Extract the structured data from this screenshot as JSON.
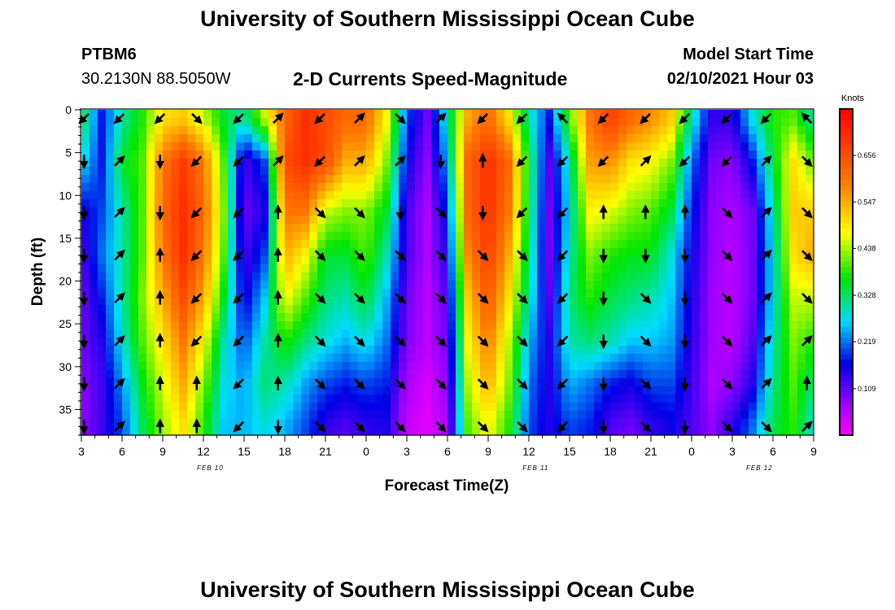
{
  "header": {
    "title_top": "University of Southern Mississippi Ocean Cube",
    "title_bottom": "University of Southern Mississippi Ocean Cube",
    "station": "PTBM6",
    "coords": "30.2130N 88.5050W",
    "subtitle": "2-D Currents Speed-Magnitude",
    "model_label": "Model Start Time",
    "model_time": "02/10/2021 Hour 03"
  },
  "chart_data": {
    "type": "heatmap",
    "title": "2-D Currents Speed-Magnitude",
    "xlabel": "Forecast Time(Z)",
    "ylabel": "Depth (ft)",
    "x_range": [
      0,
      54
    ],
    "x_unit": "hours from Feb 10 03Z",
    "y_range": [
      0,
      38
    ],
    "y_ticks": [
      0,
      5,
      10,
      15,
      20,
      25,
      30,
      35
    ],
    "x_tick_labels": [
      "3",
      "6",
      "9",
      "12",
      "15",
      "18",
      "21",
      "0",
      "3",
      "6",
      "9",
      "12",
      "15",
      "18",
      "21",
      "0",
      "3",
      "6",
      "9"
    ],
    "date_labels": [
      {
        "text": "FEB 10",
        "hour": 9.5
      },
      {
        "text": "FEB 11",
        "hour": 33.5
      },
      {
        "text": "FEB 12",
        "hour": 50
      }
    ],
    "colorbar": {
      "label": "Knots",
      "ticks": [
        "0.109",
        "0.219",
        "0.328",
        "0.438",
        "0.547",
        "0.656"
      ],
      "min": 0,
      "max": 0.765
    },
    "depth_levels": [
      1,
      6,
      12,
      17,
      22,
      27,
      32,
      37
    ],
    "vector_hours": [
      0.2,
      2.8,
      5.8,
      8.5,
      11.6,
      14.5,
      17.6,
      20.5,
      23.5,
      26.5,
      29.6,
      32.5,
      35.5,
      38.5,
      41.6,
      44.5,
      47.6,
      50.5,
      53.5
    ],
    "speed_columns": [
      {
        "hour": 0,
        "speeds": [
          0.35,
          0.28,
          0.15,
          0.12,
          0.1,
          0.1,
          0.08,
          0.08
        ]
      },
      {
        "hour": 1.5,
        "speeds": [
          0.18,
          0.18,
          0.2,
          0.22,
          0.18,
          0.15,
          0.13,
          0.13
        ]
      },
      {
        "hour": 3,
        "speeds": [
          0.3,
          0.35,
          0.3,
          0.3,
          0.3,
          0.28,
          0.23,
          0.2
        ]
      },
      {
        "hour": 4.5,
        "speeds": [
          0.38,
          0.4,
          0.4,
          0.4,
          0.42,
          0.4,
          0.36,
          0.33
        ]
      },
      {
        "hour": 6,
        "speeds": [
          0.5,
          0.6,
          0.62,
          0.6,
          0.55,
          0.5,
          0.46,
          0.43
        ]
      },
      {
        "hour": 7.5,
        "speeds": [
          0.52,
          0.68,
          0.7,
          0.7,
          0.66,
          0.6,
          0.55,
          0.5
        ]
      },
      {
        "hour": 9,
        "speeds": [
          0.45,
          0.6,
          0.62,
          0.6,
          0.55,
          0.48,
          0.42,
          0.38
        ]
      },
      {
        "hour": 10.5,
        "speeds": [
          0.35,
          0.4,
          0.42,
          0.4,
          0.36,
          0.3,
          0.28,
          0.26
        ]
      },
      {
        "hour": 12,
        "speeds": [
          0.3,
          0.12,
          0.1,
          0.12,
          0.15,
          0.2,
          0.24,
          0.25
        ]
      },
      {
        "hour": 13.5,
        "speeds": [
          0.45,
          0.2,
          0.15,
          0.2,
          0.26,
          0.3,
          0.32,
          0.28
        ]
      },
      {
        "hour": 15,
        "speeds": [
          0.62,
          0.66,
          0.6,
          0.55,
          0.48,
          0.38,
          0.3,
          0.25
        ]
      },
      {
        "hour": 16.5,
        "speeds": [
          0.7,
          0.7,
          0.6,
          0.48,
          0.4,
          0.32,
          0.24,
          0.2
        ]
      },
      {
        "hour": 18,
        "speeds": [
          0.66,
          0.66,
          0.45,
          0.35,
          0.32,
          0.28,
          0.2,
          0.14
        ]
      },
      {
        "hour": 19.5,
        "speeds": [
          0.62,
          0.55,
          0.42,
          0.35,
          0.3,
          0.25,
          0.18,
          0.12
        ]
      },
      {
        "hour": 21,
        "speeds": [
          0.62,
          0.55,
          0.42,
          0.4,
          0.35,
          0.28,
          0.2,
          0.14
        ]
      },
      {
        "hour": 22.5,
        "speeds": [
          0.48,
          0.42,
          0.35,
          0.3,
          0.25,
          0.22,
          0.18,
          0.15
        ]
      },
      {
        "hour": 24,
        "speeds": [
          0.2,
          0.16,
          0.12,
          0.12,
          0.1,
          0.09,
          0.06,
          0.04
        ]
      },
      {
        "hour": 25.5,
        "speeds": [
          0.1,
          0.08,
          0.06,
          0.06,
          0.05,
          0.05,
          0.03,
          0.02
        ]
      },
      {
        "hour": 27,
        "speeds": [
          0.3,
          0.25,
          0.18,
          0.15,
          0.12,
          0.1,
          0.08,
          0.06
        ]
      },
      {
        "hour": 28.5,
        "speeds": [
          0.55,
          0.62,
          0.62,
          0.58,
          0.52,
          0.48,
          0.44,
          0.4
        ]
      },
      {
        "hour": 30,
        "speeds": [
          0.62,
          0.7,
          0.7,
          0.68,
          0.65,
          0.6,
          0.55,
          0.48
        ]
      },
      {
        "hour": 31.5,
        "speeds": [
          0.5,
          0.62,
          0.6,
          0.55,
          0.5,
          0.45,
          0.42,
          0.38
        ]
      },
      {
        "hour": 33,
        "speeds": [
          0.3,
          0.35,
          0.34,
          0.32,
          0.3,
          0.25,
          0.22,
          0.2
        ]
      },
      {
        "hour": 34.5,
        "speeds": [
          0.18,
          0.12,
          0.1,
          0.1,
          0.12,
          0.15,
          0.15,
          0.15
        ]
      },
      {
        "hour": 36,
        "speeds": [
          0.4,
          0.3,
          0.28,
          0.3,
          0.32,
          0.3,
          0.25,
          0.2
        ]
      },
      {
        "hour": 37.5,
        "speeds": [
          0.6,
          0.56,
          0.48,
          0.42,
          0.38,
          0.32,
          0.22,
          0.18
        ]
      },
      {
        "hour": 39,
        "speeds": [
          0.68,
          0.58,
          0.46,
          0.38,
          0.34,
          0.3,
          0.18,
          0.12
        ]
      },
      {
        "hour": 40.5,
        "speeds": [
          0.62,
          0.5,
          0.42,
          0.36,
          0.32,
          0.26,
          0.16,
          0.1
        ]
      },
      {
        "hour": 42,
        "speeds": [
          0.58,
          0.48,
          0.4,
          0.36,
          0.3,
          0.26,
          0.2,
          0.14
        ]
      },
      {
        "hour": 43.5,
        "speeds": [
          0.52,
          0.42,
          0.34,
          0.28,
          0.26,
          0.24,
          0.2,
          0.16
        ]
      },
      {
        "hour": 45,
        "speeds": [
          0.3,
          0.22,
          0.18,
          0.16,
          0.15,
          0.14,
          0.13,
          0.12
        ]
      },
      {
        "hour": 46.5,
        "speeds": [
          0.14,
          0.1,
          0.08,
          0.08,
          0.07,
          0.07,
          0.06,
          0.08
        ]
      },
      {
        "hour": 48,
        "speeds": [
          0.14,
          0.08,
          0.06,
          0.05,
          0.05,
          0.05,
          0.08,
          0.14
        ]
      },
      {
        "hour": 49.5,
        "speeds": [
          0.28,
          0.18,
          0.1,
          0.1,
          0.1,
          0.12,
          0.15,
          0.22
        ]
      },
      {
        "hour": 51,
        "speeds": [
          0.38,
          0.35,
          0.3,
          0.28,
          0.28,
          0.3,
          0.32,
          0.34
        ]
      },
      {
        "hour": 52.5,
        "speeds": [
          0.4,
          0.5,
          0.52,
          0.5,
          0.45,
          0.42,
          0.4,
          0.38
        ]
      },
      {
        "hour": 54,
        "speeds": [
          0.3,
          0.4,
          0.52,
          0.55,
          0.45,
          0.38,
          0.32,
          0.28
        ]
      }
    ],
    "vectors": [
      [
        [
          -1,
          -1
        ],
        [
          0,
          -1
        ],
        [
          0,
          -1
        ],
        [
          0,
          -1
        ],
        [
          0,
          -1
        ],
        [
          0,
          -1
        ],
        [
          0,
          -1
        ],
        [
          0,
          -1
        ]
      ],
      [
        [
          -1,
          -1
        ],
        [
          1,
          1
        ],
        [
          1,
          1
        ],
        [
          1,
          1
        ],
        [
          1,
          1
        ],
        [
          1,
          1
        ],
        [
          1,
          1
        ],
        [
          1,
          1
        ]
      ],
      [
        [
          -1,
          -1
        ],
        [
          0,
          -1
        ],
        [
          0,
          -1
        ],
        [
          0,
          1
        ],
        [
          0,
          1
        ],
        [
          0,
          1
        ],
        [
          0,
          1
        ],
        [
          0,
          1
        ]
      ],
      [
        [
          1,
          -1
        ],
        [
          -1,
          -1
        ],
        [
          -1,
          -1
        ],
        [
          -1,
          -1
        ],
        [
          -1,
          -1
        ],
        [
          -1,
          -1
        ],
        [
          0,
          1
        ],
        [
          0,
          1
        ]
      ],
      [
        [
          -1,
          -1
        ],
        [
          -1,
          -1
        ],
        [
          -1,
          -1
        ],
        [
          -1,
          -1
        ],
        [
          -1,
          -1
        ],
        [
          -1,
          -1
        ],
        [
          -1,
          -1
        ],
        [
          -1,
          -1
        ]
      ],
      [
        [
          1,
          1
        ],
        [
          1,
          1
        ],
        [
          0,
          1
        ],
        [
          0,
          1
        ],
        [
          0,
          1
        ],
        [
          0,
          1
        ],
        [
          0,
          1
        ],
        [
          0,
          -1
        ]
      ],
      [
        [
          -1,
          -1
        ],
        [
          -1,
          -1
        ],
        [
          1,
          -1
        ],
        [
          1,
          -1
        ],
        [
          1,
          -1
        ],
        [
          1,
          -1
        ],
        [
          1,
          -1
        ],
        [
          1,
          -1
        ]
      ],
      [
        [
          1,
          1
        ],
        [
          1,
          1
        ],
        [
          1,
          -1
        ],
        [
          1,
          -1
        ],
        [
          1,
          -1
        ],
        [
          1,
          -1
        ],
        [
          1,
          -1
        ],
        [
          1,
          -1
        ]
      ],
      [
        [
          1,
          -1
        ],
        [
          1,
          1
        ],
        [
          0,
          -1
        ],
        [
          1,
          -1
        ],
        [
          1,
          -1
        ],
        [
          1,
          -1
        ],
        [
          1,
          -1
        ],
        [
          1,
          -1
        ]
      ],
      [
        [
          1,
          1
        ],
        [
          0,
          -1
        ],
        [
          1,
          -1
        ],
        [
          1,
          -1
        ],
        [
          1,
          -1
        ],
        [
          1,
          -1
        ],
        [
          1,
          -1
        ],
        [
          1,
          -1
        ]
      ],
      [
        [
          -1,
          -1
        ],
        [
          0,
          1
        ],
        [
          0,
          -1
        ],
        [
          1,
          -1
        ],
        [
          1,
          -1
        ],
        [
          1,
          -1
        ],
        [
          1,
          -1
        ],
        [
          1,
          -1
        ]
      ],
      [
        [
          -1,
          -1
        ],
        [
          -1,
          -1
        ],
        [
          -1,
          -1
        ],
        [
          1,
          -1
        ],
        [
          1,
          -1
        ],
        [
          1,
          -1
        ],
        [
          1,
          -1
        ],
        [
          1,
          -1
        ]
      ],
      [
        [
          -1,
          1
        ],
        [
          -1,
          -1
        ],
        [
          -1,
          -1
        ],
        [
          -1,
          -1
        ],
        [
          -1,
          -1
        ],
        [
          -1,
          -1
        ],
        [
          -1,
          -1
        ],
        [
          -1,
          -1
        ]
      ],
      [
        [
          -1,
          -1
        ],
        [
          -1,
          -1
        ],
        [
          0,
          1
        ],
        [
          0,
          -1
        ],
        [
          0,
          -1
        ],
        [
          0,
          -1
        ],
        [
          0,
          -1
        ],
        [
          0,
          -1
        ]
      ],
      [
        [
          -1,
          -1
        ],
        [
          1,
          1
        ],
        [
          0,
          1
        ],
        [
          0,
          -1
        ],
        [
          1,
          -1
        ],
        [
          1,
          -1
        ],
        [
          1,
          -1
        ],
        [
          1,
          -1
        ]
      ],
      [
        [
          -1,
          -1
        ],
        [
          -1,
          -1
        ],
        [
          0,
          1
        ],
        [
          0,
          -1
        ],
        [
          0,
          -1
        ],
        [
          0,
          -1
        ],
        [
          0,
          -1
        ],
        [
          0,
          -1
        ]
      ],
      [
        [
          -1,
          -1
        ],
        [
          -1,
          -1
        ],
        [
          1,
          -1
        ],
        [
          1,
          -1
        ],
        [
          1,
          -1
        ],
        [
          1,
          -1
        ],
        [
          1,
          -1
        ],
        [
          1,
          -1
        ]
      ],
      [
        [
          -1,
          -1
        ],
        [
          1,
          1
        ],
        [
          1,
          1
        ],
        [
          1,
          1
        ],
        [
          1,
          1
        ],
        [
          1,
          1
        ],
        [
          1,
          1
        ],
        [
          1,
          -1
        ]
      ],
      [
        [
          -1,
          1
        ],
        [
          1,
          -1
        ],
        [
          1,
          -1
        ],
        [
          1,
          -1
        ],
        [
          1,
          -1
        ],
        [
          1,
          1
        ],
        [
          0,
          1
        ],
        [
          1,
          1
        ]
      ]
    ]
  }
}
